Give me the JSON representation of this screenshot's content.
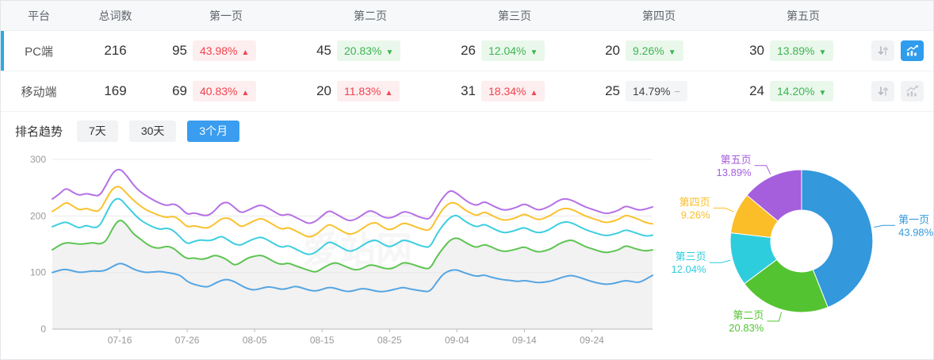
{
  "table": {
    "headers": [
      "平台",
      "总词数",
      "第一页",
      "第二页",
      "第三页",
      "第四页",
      "第五页"
    ],
    "rows": [
      {
        "platform": "PC端",
        "total": "216",
        "selected": true,
        "pages": [
          {
            "count": "95",
            "pct": "43.98%",
            "trend": "up",
            "tone": "red"
          },
          {
            "count": "45",
            "pct": "20.83%",
            "trend": "down",
            "tone": "green"
          },
          {
            "count": "26",
            "pct": "12.04%",
            "trend": "down",
            "tone": "green"
          },
          {
            "count": "20",
            "pct": "9.26%",
            "trend": "down",
            "tone": "green"
          },
          {
            "count": "30",
            "pct": "13.89%",
            "trend": "down",
            "tone": "green"
          }
        ],
        "chart_button_active": true
      },
      {
        "platform": "移动端",
        "total": "169",
        "selected": false,
        "pages": [
          {
            "count": "69",
            "pct": "40.83%",
            "trend": "up",
            "tone": "red"
          },
          {
            "count": "20",
            "pct": "11.83%",
            "trend": "up",
            "tone": "red"
          },
          {
            "count": "31",
            "pct": "18.34%",
            "trend": "up",
            "tone": "red"
          },
          {
            "count": "25",
            "pct": "14.79%",
            "trend": "flat",
            "tone": "gray"
          },
          {
            "count": "24",
            "pct": "14.20%",
            "trend": "down",
            "tone": "green"
          }
        ],
        "chart_button_active": false
      }
    ]
  },
  "trend_icons": {
    "up": "▲",
    "down": "▼",
    "flat": "−"
  },
  "trend": {
    "title": "排名趋势",
    "tabs": [
      {
        "label": "7天",
        "active": false
      },
      {
        "label": "30天",
        "active": false
      },
      {
        "label": "3个月",
        "active": true
      }
    ]
  },
  "watermark": "爱站网",
  "colors": {
    "selected_row_bar": "#2ea9e6",
    "active_button_blue": "#2f9cee",
    "active_tab_blue": "#3a9def",
    "badge_red_text": "#f2434d",
    "badge_green_text": "#3cb551",
    "axis_text": "#999999",
    "grid_line": "#e8e8e8",
    "axis_line": "#b8b8b8"
  },
  "chart_data": [
    {
      "type": "line",
      "title": "排名趋势 (3个月)",
      "x_ticks": [
        "07-16",
        "07-26",
        "08-05",
        "08-15",
        "08-25",
        "09-04",
        "09-14",
        "09-24"
      ],
      "x_tick_indices": [
        10,
        20,
        30,
        40,
        50,
        60,
        70,
        80
      ],
      "ylim": [
        0,
        300
      ],
      "y_ticks": [
        0,
        100,
        200,
        300
      ],
      "grid": true,
      "legend_position": "none",
      "series": [
        {
          "name": "第一页",
          "color": "#55a5e2",
          "area": false,
          "values": [
            100,
            104,
            106,
            103,
            100,
            101,
            103,
            102,
            104,
            111,
            117,
            113,
            106,
            102,
            100,
            101,
            102,
            100,
            98,
            95,
            84,
            79,
            76,
            74,
            80,
            86,
            88,
            84,
            77,
            71,
            69,
            72,
            75,
            73,
            70,
            72,
            76,
            73,
            69,
            67,
            70,
            74,
            72,
            68,
            66,
            69,
            72,
            70,
            67,
            66,
            68,
            71,
            74,
            71,
            69,
            67,
            66,
            83,
            98,
            104,
            105,
            100,
            96,
            93,
            96,
            92,
            89,
            87,
            86,
            84,
            86,
            84,
            82,
            83,
            85,
            89,
            93,
            95,
            92,
            88,
            84,
            81,
            79,
            80,
            83,
            86,
            84,
            82,
            88,
            95
          ]
        },
        {
          "name": "第二页",
          "color": "#5ec453",
          "area": true,
          "values": [
            140,
            148,
            153,
            152,
            150,
            151,
            153,
            150,
            155,
            180,
            195,
            185,
            168,
            160,
            150,
            144,
            143,
            147,
            143,
            132,
            124,
            126,
            123,
            125,
            131,
            128,
            122,
            112,
            118,
            126,
            129,
            131,
            125,
            118,
            114,
            117,
            112,
            108,
            104,
            100,
            107,
            114,
            118,
            113,
            108,
            104,
            107,
            114,
            112,
            108,
            106,
            110,
            118,
            116,
            112,
            108,
            106,
            128,
            144,
            158,
            162,
            155,
            148,
            144,
            150,
            146,
            140,
            137,
            139,
            142,
            146,
            140,
            136,
            138,
            142,
            150,
            155,
            158,
            152,
            146,
            142,
            138,
            135,
            137,
            140,
            148,
            144,
            140,
            138,
            140
          ]
        },
        {
          "name": "第三页",
          "color": "#3dcee0",
          "area": false,
          "values": [
            181,
            186,
            190,
            184,
            178,
            184,
            179,
            181,
            205,
            228,
            232,
            218,
            205,
            193,
            186,
            180,
            176,
            179,
            174,
            162,
            150,
            155,
            158,
            156,
            158,
            165,
            158,
            150,
            148,
            155,
            160,
            163,
            157,
            150,
            144,
            148,
            142,
            136,
            131,
            135,
            145,
            155,
            150,
            143,
            137,
            140,
            148,
            155,
            158,
            150,
            145,
            150,
            158,
            155,
            150,
            146,
            144,
            168,
            185,
            198,
            202,
            192,
            185,
            180,
            186,
            180,
            174,
            170,
            172,
            176,
            180,
            174,
            170,
            172,
            178,
            186,
            190,
            188,
            182,
            176,
            172,
            168,
            165,
            167,
            170,
            176,
            172,
            168,
            164,
            166
          ]
        },
        {
          "name": "第四页",
          "color": "#f9c22e",
          "area": false,
          "values": [
            208,
            215,
            225,
            218,
            210,
            214,
            209,
            208,
            230,
            250,
            253,
            240,
            228,
            218,
            210,
            205,
            200,
            197,
            200,
            192,
            180,
            183,
            180,
            178,
            185,
            195,
            197,
            190,
            180,
            186,
            192,
            196,
            190,
            183,
            176,
            180,
            174,
            168,
            162,
            166,
            176,
            186,
            180,
            173,
            167,
            170,
            178,
            186,
            189,
            180,
            175,
            180,
            188,
            185,
            180,
            176,
            174,
            196,
            214,
            224,
            222,
            212,
            205,
            200,
            208,
            202,
            196,
            192,
            194,
            198,
            204,
            198,
            193,
            196,
            202,
            210,
            214,
            212,
            206,
            200,
            196,
            192,
            188,
            190,
            194,
            202,
            198,
            194,
            188,
            186
          ]
        },
        {
          "name": "第五页",
          "color": "#b570e5",
          "area": false,
          "values": [
            230,
            238,
            250,
            242,
            236,
            240,
            237,
            235,
            255,
            278,
            284,
            272,
            255,
            243,
            235,
            228,
            222,
            218,
            222,
            215,
            202,
            206,
            202,
            200,
            208,
            222,
            225,
            215,
            205,
            210,
            216,
            220,
            214,
            207,
            200,
            204,
            198,
            192,
            186,
            190,
            200,
            210,
            204,
            197,
            191,
            194,
            202,
            210,
            206,
            198,
            196,
            200,
            208,
            206,
            200,
            196,
            194,
            216,
            234,
            246,
            240,
            230,
            222,
            218,
            226,
            220,
            214,
            210,
            212,
            216,
            222,
            216,
            210,
            213,
            219,
            227,
            231,
            228,
            222,
            216,
            212,
            208,
            204,
            206,
            210,
            218,
            214,
            210,
            212,
            216
          ]
        }
      ]
    },
    {
      "type": "pie",
      "title": "页面分布 (PC端)",
      "inner_radius_ratio": 0.43,
      "start_angle": "top-clockwise",
      "slices": [
        {
          "name": "第一页",
          "value": 43.98,
          "label": "43.98%",
          "color": "#3398dc"
        },
        {
          "name": "第二页",
          "value": 20.83,
          "label": "20.83%",
          "color": "#54c332"
        },
        {
          "name": "第三页",
          "value": 12.04,
          "label": "12.04%",
          "color": "#2ecddd"
        },
        {
          "name": "第四页",
          "value": 9.26,
          "label": "9.26%",
          "color": "#fbbe28"
        },
        {
          "name": "第五页",
          "value": 13.89,
          "label": "13.89%",
          "color": "#a55edc"
        }
      ]
    }
  ]
}
